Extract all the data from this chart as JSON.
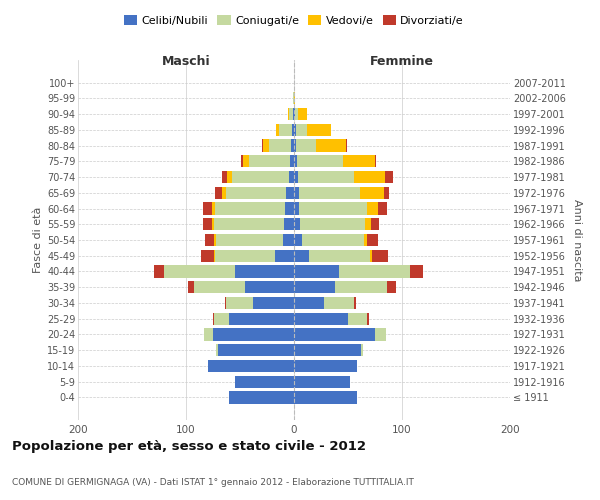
{
  "age_groups": [
    "100+",
    "95-99",
    "90-94",
    "85-89",
    "80-84",
    "75-79",
    "70-74",
    "65-69",
    "60-64",
    "55-59",
    "50-54",
    "45-49",
    "40-44",
    "35-39",
    "30-34",
    "25-29",
    "20-24",
    "15-19",
    "10-14",
    "5-9",
    "0-4"
  ],
  "birth_years": [
    "≤ 1911",
    "1912-1916",
    "1917-1921",
    "1922-1926",
    "1927-1931",
    "1932-1936",
    "1937-1941",
    "1942-1946",
    "1947-1951",
    "1952-1956",
    "1957-1961",
    "1962-1966",
    "1967-1971",
    "1972-1976",
    "1977-1981",
    "1982-1986",
    "1987-1991",
    "1992-1996",
    "1997-2001",
    "2002-2006",
    "2007-2011"
  ],
  "colors": {
    "celibi": "#4472c4",
    "coniugati": "#c5d9a0",
    "vedovi": "#ffc000",
    "divorziati": "#c0392b"
  },
  "males_cel": [
    0,
    0,
    1,
    2,
    3,
    4,
    5,
    7,
    8,
    9,
    10,
    18,
    55,
    45,
    38,
    60,
    75,
    70,
    80,
    55,
    60
  ],
  "males_con": [
    0,
    1,
    4,
    12,
    20,
    38,
    52,
    56,
    65,
    65,
    62,
    55,
    65,
    48,
    25,
    14,
    8,
    2,
    0,
    0,
    0
  ],
  "males_ved": [
    0,
    0,
    1,
    3,
    6,
    5,
    5,
    4,
    3,
    2,
    2,
    1,
    0,
    0,
    0,
    0,
    0,
    0,
    0,
    0,
    0
  ],
  "males_div": [
    0,
    0,
    0,
    0,
    1,
    2,
    5,
    6,
    8,
    8,
    8,
    12,
    10,
    5,
    1,
    1,
    0,
    0,
    0,
    0,
    0
  ],
  "females_nub": [
    0,
    0,
    1,
    2,
    2,
    3,
    4,
    5,
    5,
    6,
    7,
    14,
    42,
    38,
    28,
    50,
    75,
    62,
    58,
    52,
    58
  ],
  "females_con": [
    0,
    0,
    3,
    10,
    18,
    42,
    52,
    56,
    63,
    60,
    58,
    56,
    65,
    48,
    28,
    18,
    10,
    2,
    0,
    0,
    0
  ],
  "females_ved": [
    0,
    1,
    8,
    22,
    28,
    30,
    28,
    22,
    10,
    5,
    3,
    2,
    0,
    0,
    0,
    0,
    0,
    0,
    0,
    0,
    0
  ],
  "females_div": [
    0,
    0,
    0,
    0,
    1,
    1,
    8,
    5,
    8,
    8,
    10,
    15,
    12,
    8,
    1,
    1,
    0,
    0,
    0,
    0,
    0
  ],
  "xlim": 200,
  "title": "Popolazione per età, sesso e stato civile - 2012",
  "subtitle": "COMUNE DI GERMIGNAGA (VA) - Dati ISTAT 1° gennaio 2012 - Elaborazione TUTTITALIA.IT",
  "ylabel": "Fasce di età",
  "ylabel_right": "Anni di nascita",
  "label_maschi": "Maschi",
  "label_femmine": "Femmine",
  "legend_labels": [
    "Celibi/Nubili",
    "Coniugati/e",
    "Vedovi/e",
    "Divorziati/e"
  ],
  "bg_color": "#ffffff",
  "grid_color": "#cccccc"
}
